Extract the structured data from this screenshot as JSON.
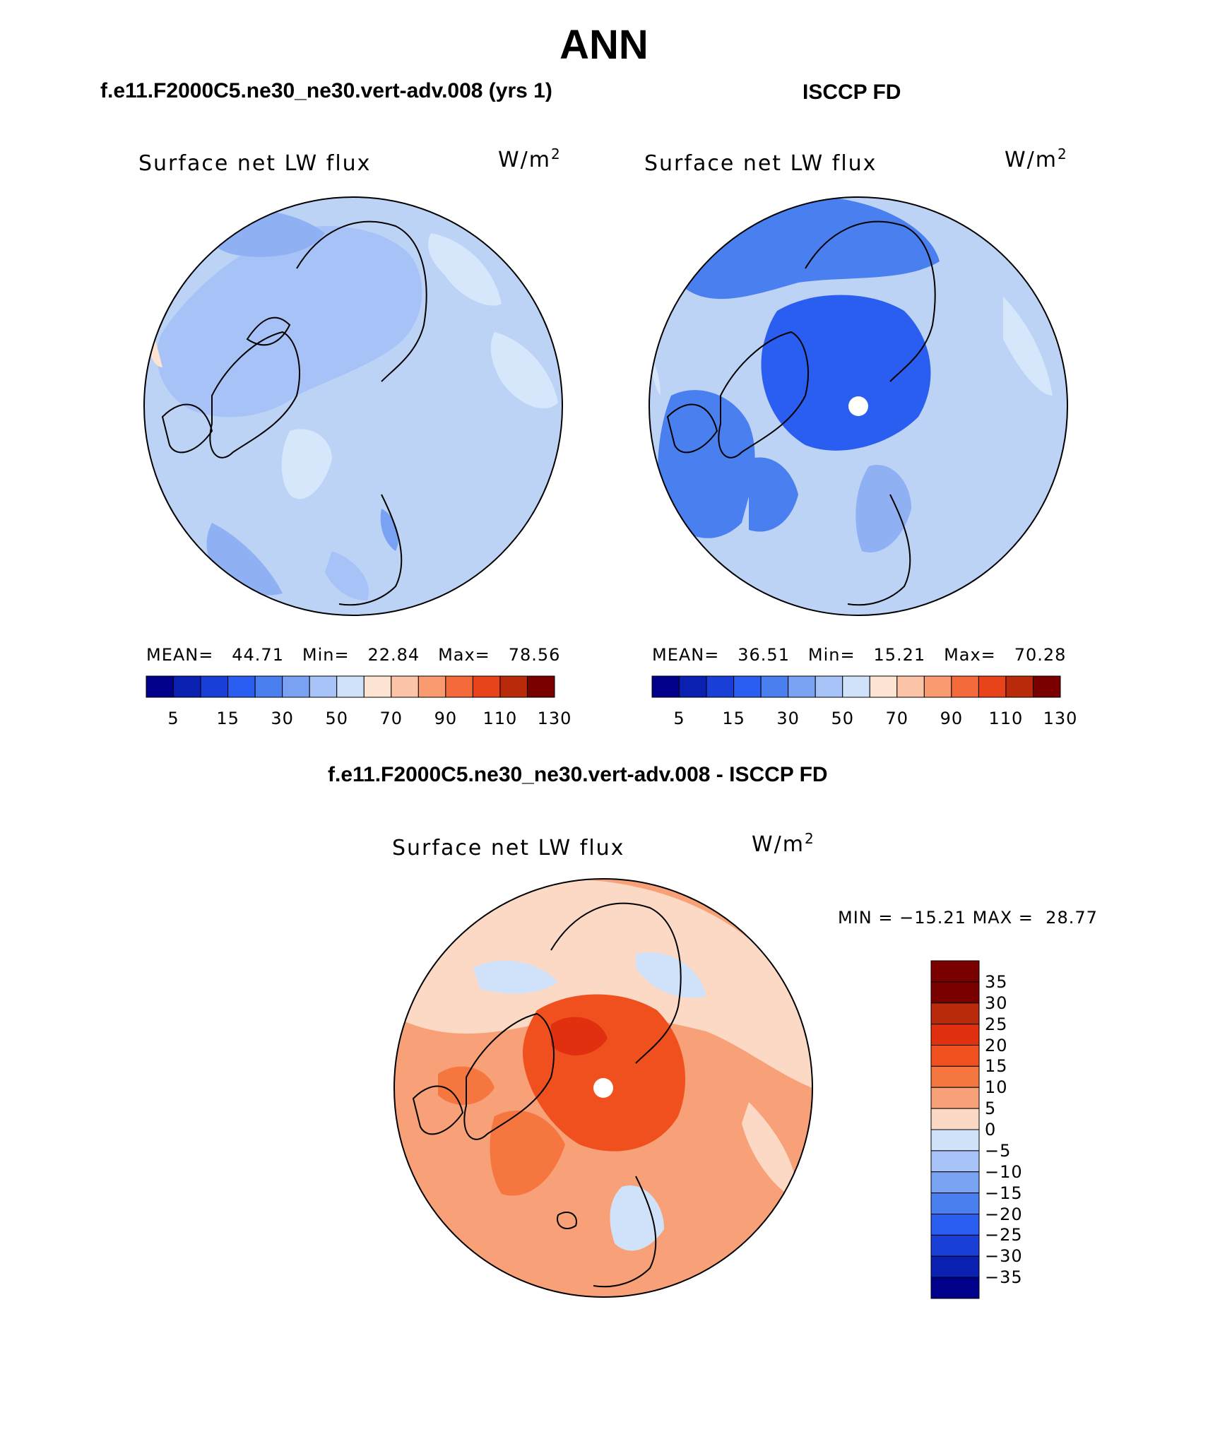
{
  "title": "ANN",
  "panel_left": {
    "title": "f.e11.F2000C5.ne30_ne30.vert-adv.008 (yrs 1)",
    "variable": "Surface net LW flux",
    "units": "W/m",
    "units_sup": "2",
    "stats": {
      "mean_label": "MEAN=",
      "mean": "44.71",
      "min_label": "Min=",
      "min": "22.84",
      "max_label": "Max=",
      "max": "78.56"
    },
    "colorbar_ticks": [
      "5",
      "15",
      "30",
      "50",
      "70",
      "90",
      "110",
      "130"
    ]
  },
  "panel_right": {
    "title": "ISCCP FD",
    "variable": "Surface net LW flux",
    "units": "W/m",
    "units_sup": "2",
    "stats": {
      "mean_label": "MEAN=",
      "mean": "36.51",
      "min_label": "Min=",
      "min": "15.21",
      "max_label": "Max=",
      "max": "70.28"
    },
    "colorbar_ticks": [
      "5",
      "15",
      "30",
      "50",
      "70",
      "90",
      "110",
      "130"
    ]
  },
  "panel_diff": {
    "title": "f.e11.F2000C5.ne30_ne30.vert-adv.008 - ISCCP FD",
    "variable": "Surface net LW flux",
    "units": "W/m",
    "units_sup": "2",
    "minmax": {
      "min_label": "MIN =",
      "min": "−15.21",
      "max_label": "MAX =",
      "max": "28.77"
    },
    "colorbar_ticks": [
      "35",
      "30",
      "25",
      "20",
      "15",
      "10",
      "5",
      "0",
      "−5",
      "−10",
      "−15",
      "−20",
      "−25",
      "−30",
      "−35"
    ]
  },
  "colors": {
    "abs_scale": [
      "#00008b",
      "#0a20b0",
      "#1a3fd6",
      "#2a5ef0",
      "#4a7ff0",
      "#7aa2f2",
      "#a6c2f6",
      "#d0e2fa",
      "#fde3d2",
      "#fbc4a6",
      "#f99a70",
      "#f56a3a",
      "#e8431a",
      "#b82a0a",
      "#7a0000"
    ],
    "diff_scale": [
      "#7a0000",
      "#b82a0a",
      "#e03010",
      "#f0501e",
      "#f5763f",
      "#f8a078",
      "#fcd9c4",
      "#d0e2fa",
      "#a6c2f6",
      "#7aa2f2",
      "#4a7ff0",
      "#2a5ef0",
      "#1a3fd6",
      "#0a20b0",
      "#00008b"
    ],
    "outline": "#000000"
  }
}
